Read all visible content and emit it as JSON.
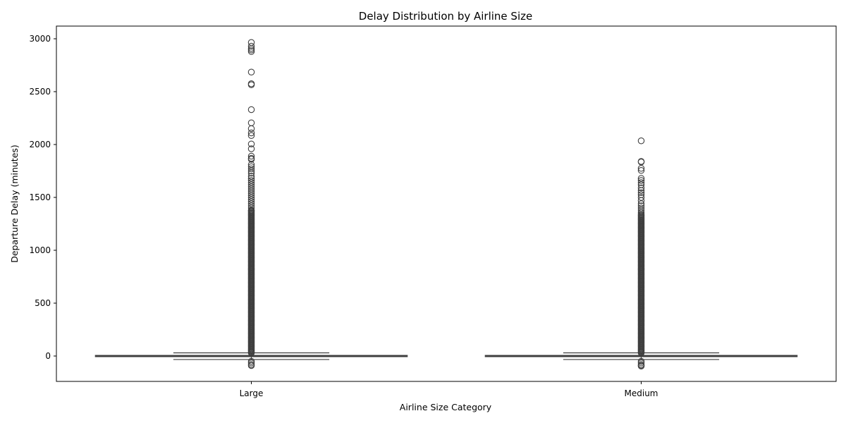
{
  "chart_data": {
    "type": "box",
    "title": "Delay Distribution by Airline Size",
    "xlabel": "Airline Size Category",
    "ylabel": "Departure Delay (minutes)",
    "categories": [
      "Large",
      "Medium"
    ],
    "ylim": [
      -240,
      3120
    ],
    "yticks": [
      0,
      500,
      1000,
      1500,
      2000,
      2500,
      3000
    ],
    "grid": false,
    "box_color": "#3b6fb5",
    "line_color": "#3f3f3f",
    "boxes": [
      {
        "name": "Large",
        "q1": -6,
        "median": -2,
        "q3": 6,
        "whisker_low": -33,
        "whisker_high": 30,
        "outliers": [
          2965,
          2930,
          2910,
          2895,
          2880,
          2685,
          2575,
          2565,
          2330,
          2205,
          2150,
          2110,
          2085,
          2005,
          1960,
          1890,
          1870,
          1860,
          1810,
          1790,
          1770,
          1750,
          1730,
          1700,
          1680,
          1660,
          1640,
          1620,
          1600,
          1580,
          1560,
          1540,
          1520,
          1500,
          1480,
          1460,
          1440,
          1420,
          1400,
          1380,
          -50,
          -65,
          -80,
          -90
        ],
        "dense_outlier_range": [
          30,
          1380
        ]
      },
      {
        "name": "Medium",
        "q1": -6,
        "median": -2,
        "q3": 6,
        "whisker_low": -33,
        "whisker_high": 30,
        "outliers": [
          2035,
          1840,
          1835,
          1775,
          1755,
          1680,
          1660,
          1640,
          1620,
          1590,
          1565,
          1545,
          1525,
          1500,
          1470,
          1440,
          1420,
          1400,
          1380,
          1360,
          1345,
          -50,
          -65,
          -80,
          -90,
          -95
        ],
        "dense_outlier_range": [
          30,
          1340
        ]
      }
    ]
  }
}
